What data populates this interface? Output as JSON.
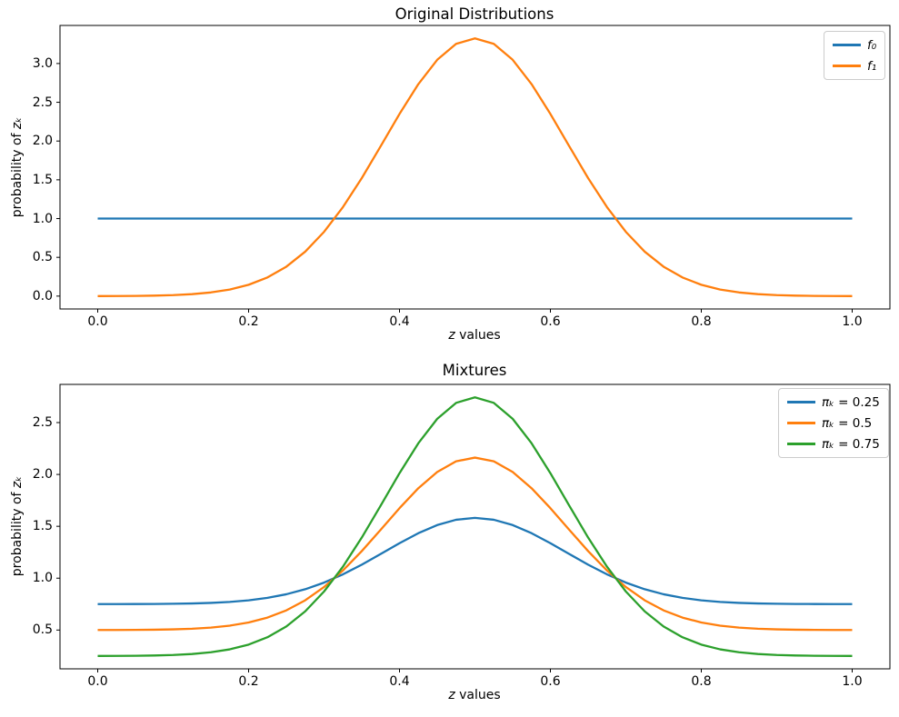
{
  "figure": {
    "background": "#ffffff"
  },
  "palette": {
    "blue": "#1f77b4",
    "orange": "#ff7f0e",
    "green": "#2ca02c"
  },
  "chart_data": [
    {
      "type": "line",
      "title": "Original Distributions",
      "xlabel_var": "z",
      "xlabel_rest": " values",
      "ylabel_prefix": "probability of ",
      "ylabel_var": "zₖ",
      "grid": false,
      "legend_position": "upper right",
      "xlim": [
        -0.05,
        1.05
      ],
      "ylim": [
        -0.166,
        3.491
      ],
      "xticks": [
        0.0,
        0.2,
        0.4,
        0.6,
        0.8,
        1.0
      ],
      "xtick_labels": [
        "0.0",
        "0.2",
        "0.4",
        "0.6",
        "0.8",
        "1.0"
      ],
      "yticks": [
        0.0,
        0.5,
        1.0,
        1.5,
        2.0,
        2.5,
        3.0
      ],
      "ytick_labels": [
        "0.0",
        "0.5",
        "1.0",
        "1.5",
        "2.0",
        "2.5",
        "3.0"
      ],
      "x": [
        0,
        0.025,
        0.05,
        0.075,
        0.1,
        0.125,
        0.15,
        0.175,
        0.2,
        0.225,
        0.25,
        0.275,
        0.3,
        0.325,
        0.35,
        0.375,
        0.4,
        0.425,
        0.45,
        0.475,
        0.5,
        0.525,
        0.55,
        0.575,
        0.6,
        0.625,
        0.65,
        0.675,
        0.7,
        0.725,
        0.75,
        0.775,
        0.8,
        0.825,
        0.85,
        0.875,
        0.9,
        0.925,
        0.95,
        0.975,
        1
      ],
      "series": [
        {
          "name": "f₀",
          "color": "#1f77b4",
          "values": [
            1,
            1,
            1,
            1,
            1,
            1,
            1,
            1,
            1,
            1,
            1,
            1,
            1,
            1,
            1,
            1,
            1,
            1,
            1,
            1,
            1,
            1,
            1,
            1,
            1,
            1,
            1,
            1,
            1,
            1,
            1,
            1,
            1,
            1,
            1,
            1,
            1,
            1,
            1,
            1,
            1
          ]
        },
        {
          "name": "f₁",
          "color": "#ff7f0e",
          "values": [
            0.0006,
            0.0013,
            0.0029,
            0.0063,
            0.0128,
            0.0252,
            0.0473,
            0.085,
            0.1461,
            0.2406,
            0.3796,
            0.5732,
            0.829,
            1.1479,
            1.5221,
            1.9325,
            2.3493,
            2.7347,
            3.0481,
            3.2533,
            3.3245,
            3.2533,
            3.0481,
            2.7347,
            2.3493,
            1.9325,
            1.5221,
            1.1479,
            0.829,
            0.5732,
            0.3796,
            0.2406,
            0.1461,
            0.085,
            0.0473,
            0.0252,
            0.0128,
            0.0063,
            0.0029,
            0.0013,
            0.0006
          ]
        }
      ],
      "legend": [
        {
          "var": "f₀",
          "rest": ""
        },
        {
          "var": "f₁",
          "rest": ""
        }
      ]
    },
    {
      "type": "line",
      "title": "Mixtures",
      "xlabel_var": "z",
      "xlabel_rest": " values",
      "ylabel_prefix": "probability of ",
      "ylabel_var": "zₖ",
      "grid": false,
      "legend_position": "upper right",
      "xlim": [
        -0.05,
        1.05
      ],
      "ylim": [
        0.126,
        2.868
      ],
      "xticks": [
        0.0,
        0.2,
        0.4,
        0.6,
        0.8,
        1.0
      ],
      "xtick_labels": [
        "0.0",
        "0.2",
        "0.4",
        "0.6",
        "0.8",
        "1.0"
      ],
      "yticks": [
        0.5,
        1.0,
        1.5,
        2.0,
        2.5
      ],
      "ytick_labels": [
        "0.5",
        "1.0",
        "1.5",
        "2.0",
        "2.5"
      ],
      "x": [
        0,
        0.025,
        0.05,
        0.075,
        0.1,
        0.125,
        0.15,
        0.175,
        0.2,
        0.225,
        0.25,
        0.275,
        0.3,
        0.325,
        0.35,
        0.375,
        0.4,
        0.425,
        0.45,
        0.475,
        0.5,
        0.525,
        0.55,
        0.575,
        0.6,
        0.625,
        0.65,
        0.675,
        0.7,
        0.725,
        0.75,
        0.775,
        0.8,
        0.825,
        0.85,
        0.875,
        0.9,
        0.925,
        0.95,
        0.975,
        1
      ],
      "series": [
        {
          "name": "πₖ = 0.25",
          "color": "#1f77b4",
          "values": [
            0.7502,
            0.7503,
            0.7507,
            0.7516,
            0.7532,
            0.7563,
            0.7618,
            0.7713,
            0.7865,
            0.8102,
            0.8449,
            0.8933,
            0.9573,
            1.037,
            1.1305,
            1.2331,
            1.3373,
            1.4337,
            1.512,
            1.5633,
            1.5811,
            1.5633,
            1.512,
            1.4337,
            1.3373,
            1.2331,
            1.1305,
            1.037,
            0.9573,
            0.8933,
            0.8449,
            0.8102,
            0.7865,
            0.7713,
            0.7618,
            0.7563,
            0.7532,
            0.7516,
            0.7507,
            0.7503,
            0.7502
          ]
        },
        {
          "name": "πₖ = 0.5",
          "color": "#ff7f0e",
          "values": [
            0.5003,
            0.5007,
            0.5015,
            0.5032,
            0.5064,
            0.5126,
            0.5237,
            0.5425,
            0.5731,
            0.6203,
            0.6898,
            0.7866,
            0.9145,
            1.074,
            1.2611,
            1.4663,
            1.6747,
            1.8674,
            2.0241,
            2.1267,
            2.1623,
            2.1267,
            2.0241,
            1.8674,
            1.6747,
            1.4663,
            1.2611,
            1.074,
            0.9145,
            0.7866,
            0.6898,
            0.6203,
            0.5731,
            0.5425,
            0.5237,
            0.5126,
            0.5064,
            0.5032,
            0.5015,
            0.5007,
            0.5003
          ]
        },
        {
          "name": "πₖ = 0.75",
          "color": "#2ca02c",
          "values": [
            0.2505,
            0.251,
            0.2522,
            0.2547,
            0.2596,
            0.2689,
            0.2855,
            0.3138,
            0.3596,
            0.4305,
            0.5347,
            0.6799,
            0.8718,
            1.1109,
            1.3916,
            1.6994,
            2.012,
            2.301,
            2.5361,
            2.69,
            2.7434,
            2.69,
            2.5361,
            2.301,
            2.012,
            1.6994,
            1.3916,
            1.1109,
            0.8718,
            0.6799,
            0.5347,
            0.4305,
            0.3596,
            0.3138,
            0.2855,
            0.2689,
            0.2596,
            0.2547,
            0.2522,
            0.251,
            0.2505
          ]
        }
      ],
      "legend": [
        {
          "var": "πₖ",
          "rest": " = 0.25"
        },
        {
          "var": "πₖ",
          "rest": " = 0.5"
        },
        {
          "var": "πₖ",
          "rest": " = 0.75"
        }
      ]
    }
  ]
}
